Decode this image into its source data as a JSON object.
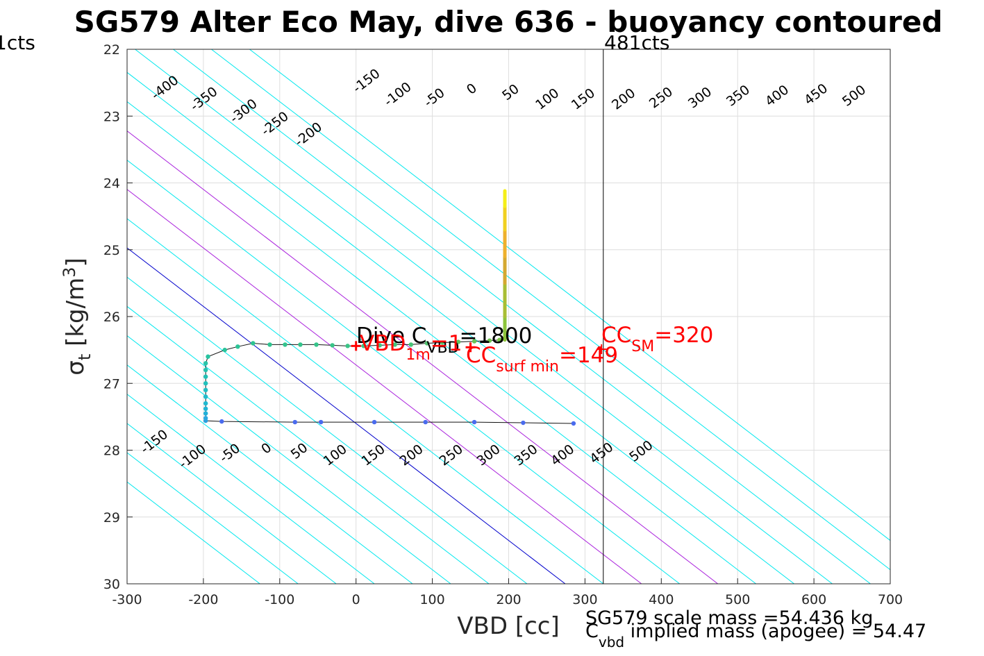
{
  "chart_data": {
    "type": "line",
    "title": "SG579 Alter Eco May, dive 636 - buoyancy contoured",
    "xlabel": "VBD [cc]",
    "ylabel_main": "σ",
    "ylabel_sub": "t",
    "ylabel_unit": " [kg/m",
    "ylabel_exp": "3",
    "ylabel_close": "]",
    "xlim": [
      -300,
      700
    ],
    "ylim": [
      22,
      30
    ],
    "y_reversed": true,
    "grid": true,
    "x_ticks": [
      -300,
      -200,
      -100,
      0,
      100,
      200,
      300,
      400,
      500,
      600,
      700
    ],
    "x_tick_labels": [
      "-300",
      "-200",
      "-100",
      "0",
      "100",
      "200",
      "300",
      "400",
      "500",
      "600",
      "700"
    ],
    "y_ticks": [
      22,
      23,
      24,
      25,
      26,
      27,
      28,
      29,
      30
    ],
    "y_tick_labels": [
      "22",
      "23",
      "24",
      "25",
      "26",
      "27",
      "28",
      "29",
      "30"
    ],
    "contours": {
      "levels": [
        -400,
        -350,
        -300,
        -250,
        -200,
        -150,
        -100,
        -50,
        0,
        50,
        100,
        150,
        200,
        250,
        300,
        350,
        400,
        450,
        500
      ],
      "zero_color": "#0000cc",
      "highlight_levels": [
        100,
        200
      ],
      "highlight_color": "#aa22dd",
      "color": "#00e8ee",
      "top_labels": [
        {
          "level": -400,
          "text": "-400",
          "x": -250,
          "y": 22.58
        },
        {
          "level": -350,
          "text": "-350",
          "x": -199,
          "y": 22.75
        },
        {
          "level": -300,
          "text": "-300",
          "x": -147,
          "y": 22.93
        },
        {
          "level": -250,
          "text": "-250",
          "x": -106,
          "y": 23.12
        },
        {
          "level": -200,
          "text": "-200",
          "x": -62,
          "y": 23.28
        },
        {
          "level": -150,
          "text": "-150",
          "x": 14,
          "y": 22.48
        },
        {
          "level": -100,
          "text": "-100",
          "x": 55,
          "y": 22.68
        },
        {
          "level": -50,
          "text": "-50",
          "x": 103,
          "y": 22.73
        },
        {
          "level": 0,
          "text": "0",
          "x": 152,
          "y": 22.6
        },
        {
          "level": 50,
          "text": "50",
          "x": 203,
          "y": 22.65
        },
        {
          "level": 100,
          "text": "100",
          "x": 251,
          "y": 22.75
        },
        {
          "level": 150,
          "text": "150",
          "x": 298,
          "y": 22.75
        },
        {
          "level": 200,
          "text": "200",
          "x": 351,
          "y": 22.75
        },
        {
          "level": 250,
          "text": "250",
          "x": 400,
          "y": 22.73
        },
        {
          "level": 300,
          "text": "300",
          "x": 451,
          "y": 22.73
        },
        {
          "level": 350,
          "text": "350",
          "x": 501,
          "y": 22.7
        },
        {
          "level": 400,
          "text": "400",
          "x": 552,
          "y": 22.7
        },
        {
          "level": 450,
          "text": "450",
          "x": 603,
          "y": 22.68
        },
        {
          "level": 500,
          "text": "500",
          "x": 653,
          "y": 22.7
        }
      ],
      "bottom_labels": [
        {
          "level": -150,
          "text": "-150",
          "x": -264,
          "y": 27.88
        },
        {
          "level": -100,
          "text": "-100",
          "x": -214,
          "y": 28.1
        },
        {
          "level": -50,
          "text": "-50",
          "x": -165,
          "y": 28.05
        },
        {
          "level": 0,
          "text": "0",
          "x": -117,
          "y": 27.98
        },
        {
          "level": 50,
          "text": "50",
          "x": -74,
          "y": 28.02
        },
        {
          "level": 100,
          "text": "100",
          "x": -27,
          "y": 28.08
        },
        {
          "level": 150,
          "text": "150",
          "x": 23,
          "y": 28.08
        },
        {
          "level": 200,
          "text": "200",
          "x": 73,
          "y": 28.08
        },
        {
          "level": 250,
          "text": "250",
          "x": 125,
          "y": 28.08
        },
        {
          "level": 300,
          "text": "300",
          "x": 174,
          "y": 28.08
        },
        {
          "level": 350,
          "text": "350",
          "x": 223,
          "y": 28.08
        },
        {
          "level": 400,
          "text": "400",
          "x": 271,
          "y": 28.08
        },
        {
          "level": 450,
          "text": "450",
          "x": 322,
          "y": 28.05
        },
        {
          "level": 500,
          "text": "500",
          "x": 374,
          "y": 28.02
        }
      ]
    },
    "vertical_line": {
      "x": 324,
      "label": "481cts"
    },
    "left_edge_label": "1cts",
    "dive_track": [
      {
        "x": 285,
        "y": 27.6,
        "c": "#4a6bee"
      },
      {
        "x": 219,
        "y": 27.59,
        "c": "#4a6bee"
      },
      {
        "x": 155,
        "y": 27.58,
        "c": "#4a6bee"
      },
      {
        "x": 91,
        "y": 27.58,
        "c": "#4a6bee"
      },
      {
        "x": 24,
        "y": 27.58,
        "c": "#4a6bee"
      },
      {
        "x": -46,
        "y": 27.58,
        "c": "#4a6bee"
      },
      {
        "x": -80,
        "y": 27.58,
        "c": "#4a6bee"
      },
      {
        "x": -176,
        "y": 27.57,
        "c": "#4a6bee"
      },
      {
        "x": -197,
        "y": 27.56,
        "c": "#2aa0e0"
      },
      {
        "x": -197,
        "y": 27.52,
        "c": "#2aa8e0"
      },
      {
        "x": -197,
        "y": 27.45,
        "c": "#20b0d8"
      },
      {
        "x": -197,
        "y": 27.38,
        "c": "#20b4d4"
      },
      {
        "x": -197,
        "y": 27.3,
        "c": "#1fb8d0"
      },
      {
        "x": -197,
        "y": 27.2,
        "c": "#1fbccc"
      },
      {
        "x": -197,
        "y": 27.1,
        "c": "#20bec4"
      },
      {
        "x": -197,
        "y": 27.0,
        "c": "#21c0bc"
      },
      {
        "x": -197,
        "y": 26.9,
        "c": "#22c0b4"
      },
      {
        "x": -197,
        "y": 26.8,
        "c": "#24c2ae"
      },
      {
        "x": -197,
        "y": 26.7,
        "c": "#26c4a8"
      },
      {
        "x": -194,
        "y": 26.6,
        "c": "#28c4a0"
      },
      {
        "x": -172,
        "y": 26.5,
        "c": "#2ac49a"
      },
      {
        "x": -155,
        "y": 26.45,
        "c": "#2cc496"
      },
      {
        "x": -135,
        "y": 26.4,
        "c": "#2ec492"
      },
      {
        "x": -113,
        "y": 26.42,
        "c": "#30c490"
      },
      {
        "x": -93,
        "y": 26.42,
        "c": "#32c48e"
      },
      {
        "x": -73,
        "y": 26.42,
        "c": "#34c48c"
      },
      {
        "x": -52,
        "y": 26.42,
        "c": "#36c48a"
      },
      {
        "x": -31,
        "y": 26.43,
        "c": "#38c488"
      },
      {
        "x": -11,
        "y": 26.44,
        "c": "#3ac486"
      },
      {
        "x": 10,
        "y": 26.44,
        "c": "#3cc484"
      },
      {
        "x": 31,
        "y": 26.43,
        "c": "#40c480"
      },
      {
        "x": 51,
        "y": 26.42,
        "c": "#44c47c"
      },
      {
        "x": 72,
        "y": 26.42,
        "c": "#48c478"
      },
      {
        "x": 93,
        "y": 26.4,
        "c": "#50c470"
      },
      {
        "x": 113,
        "y": 26.39,
        "c": "#58c468"
      },
      {
        "x": 134,
        "y": 26.38,
        "c": "#60c460"
      },
      {
        "x": 155,
        "y": 26.37,
        "c": "#68c458"
      },
      {
        "x": 175,
        "y": 26.36,
        "c": "#70c450"
      },
      {
        "x": 188,
        "y": 26.35,
        "c": "#78c448"
      }
    ],
    "climb_bar": {
      "x": 195,
      "segments": [
        {
          "y0": 26.35,
          "y1": 26.0,
          "c": "#8cc43a"
        },
        {
          "y0": 26.0,
          "y1": 25.5,
          "c": "#a8be34"
        },
        {
          "y0": 25.5,
          "y1": 25.1,
          "c": "#d4a830"
        },
        {
          "y0": 25.1,
          "y1": 24.7,
          "c": "#eeb02c"
        },
        {
          "y0": 24.7,
          "y1": 24.35,
          "c": "#f0d020"
        },
        {
          "y0": 24.35,
          "y1": 24.12,
          "c": "#f4ee18"
        }
      ]
    },
    "markers": [
      {
        "x": 0,
        "y": 26.44,
        "c": "#ff0000"
      },
      {
        "x": 150,
        "y": 26.46,
        "c": "#ff0000"
      }
    ],
    "annotations": {
      "dive_c_main": "Dive C",
      "dive_c_sub": "VBD",
      "dive_c_value": "=1800",
      "vbd1m_main": "VBD",
      "vbd1m_sub": "1m",
      "vbd1m_value": "=1",
      "cc_surf_main": "CC",
      "cc_surf_sub": "surf min",
      "cc_surf_value": "=149",
      "cc_sm_main": "CC",
      "cc_sm_sub": "SM",
      "cc_sm_value": "=320",
      "plus_sign": "+"
    },
    "footer": {
      "scale_mass": "SG579 scale mass =54.436 kg",
      "implied_main": "C",
      "implied_sub": "vbd",
      "implied_text": " implied mass (apogee) = 54.47"
    }
  }
}
